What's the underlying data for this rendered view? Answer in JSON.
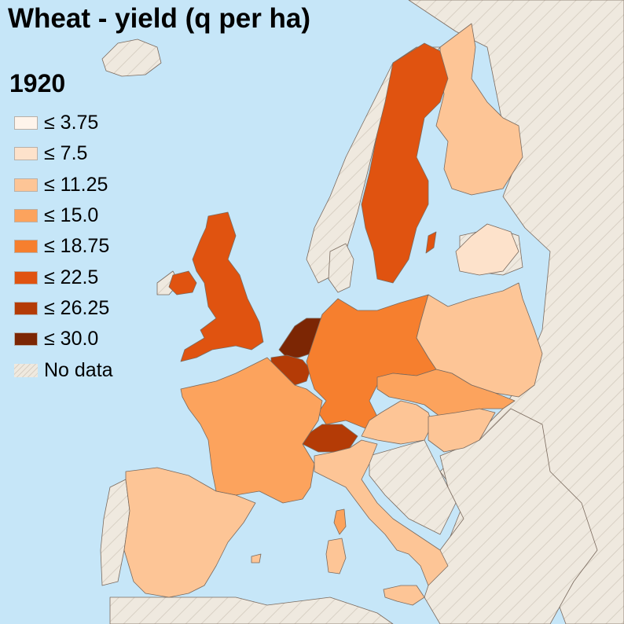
{
  "title": "Wheat - yield (q per ha)",
  "year": "1920",
  "legend": [
    {
      "label": "≤ 3.75",
      "color": "#fef4eb"
    },
    {
      "label": "≤ 7.5",
      "color": "#fde2cb"
    },
    {
      "label": "≤ 11.25",
      "color": "#fdc596"
    },
    {
      "label": "≤ 15.0",
      "color": "#fca35d"
    },
    {
      "label": "≤ 18.75",
      "color": "#f67f2e"
    },
    {
      "label": "≤ 22.5",
      "color": "#e05310"
    },
    {
      "label": "≤ 26.25",
      "color": "#b43b06"
    },
    {
      "label": "≤ 30.0",
      "color": "#7c2604"
    },
    {
      "label": "No data",
      "color": "nodata"
    }
  ],
  "colors": {
    "sea": "#c6e6f8",
    "nodata_land": "#efe9df",
    "hatch": "#d8d0c4",
    "border": "#7a6a5e"
  },
  "chart_data": {
    "type": "choropleth",
    "year": 1920,
    "regions": [
      {
        "name": "Sweden",
        "class": "≤ 22.5"
      },
      {
        "name": "United Kingdom",
        "class": "≤ 22.5"
      },
      {
        "name": "Ireland",
        "class": "≤ 22.5"
      },
      {
        "name": "Netherlands",
        "class": "≤ 30.0"
      },
      {
        "name": "Belgium",
        "class": "≤ 26.25"
      },
      {
        "name": "Switzerland",
        "class": "≤ 26.25"
      },
      {
        "name": "Germany",
        "class": "≤ 18.75"
      },
      {
        "name": "France",
        "class": "≤ 15.0"
      },
      {
        "name": "Czechoslovakia",
        "class": "≤ 15.0"
      },
      {
        "name": "Finland",
        "class": "≤ 11.25"
      },
      {
        "name": "Poland",
        "class": "≤ 11.25"
      },
      {
        "name": "Austria",
        "class": "≤ 11.25"
      },
      {
        "name": "Hungary",
        "class": "≤ 11.25"
      },
      {
        "name": "Italy",
        "class": "≤ 11.25"
      },
      {
        "name": "Spain",
        "class": "≤ 11.25"
      },
      {
        "name": "Latvia",
        "class": "≤ 7.5"
      }
    ]
  }
}
